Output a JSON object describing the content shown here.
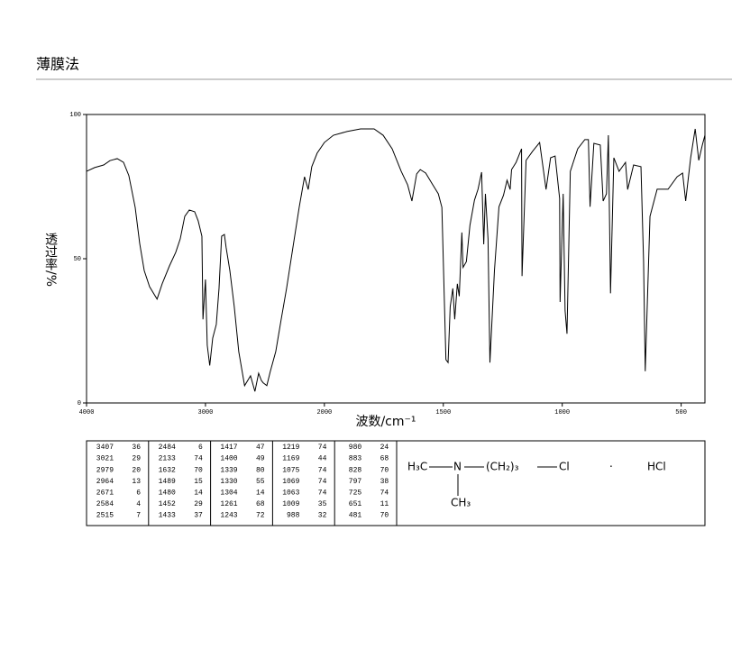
{
  "header": {
    "title": "薄膜法"
  },
  "chart_data": {
    "type": "line",
    "color": "#000000",
    "xlabel": "波数/cm⁻¹",
    "ylabel": "透过率/%",
    "xlim": [
      4000,
      400
    ],
    "xticks": [
      4000,
      3000,
      2000,
      1500,
      1000,
      500
    ],
    "ylim": [
      0,
      100
    ],
    "yticks": [
      0,
      50,
      100
    ],
    "x": [
      4000,
      3932,
      3856,
      3803,
      3742,
      3689,
      3644,
      3591,
      3553,
      3515,
      3470,
      3407,
      3364,
      3303,
      3250,
      3212,
      3174,
      3136,
      3091,
      3061,
      3030,
      3021,
      3000,
      2985,
      2964,
      2939,
      2909,
      2886,
      2864,
      2841,
      2826,
      2795,
      2758,
      2720,
      2671,
      2621,
      2584,
      2553,
      2530,
      2515,
      2484,
      2455,
      2409,
      2364,
      2318,
      2265,
      2212,
      2167,
      2136,
      2106,
      2061,
      2000,
      1962,
      1905,
      1848,
      1791,
      1753,
      1715,
      1677,
      1650,
      1632,
      1612,
      1597,
      1574,
      1544,
      1521,
      1506,
      1489,
      1480,
      1471,
      1460,
      1452,
      1441,
      1433,
      1422,
      1417,
      1403,
      1388,
      1369,
      1354,
      1339,
      1330,
      1323,
      1312,
      1304,
      1285,
      1266,
      1247,
      1232,
      1219,
      1213,
      1194,
      1171,
      1169,
      1152,
      1125,
      1095,
      1068,
      1049,
      1030,
      1011,
      1009,
      996,
      988,
      980,
      966,
      935,
      905,
      890,
      883,
      867,
      840,
      828,
      814,
      806,
      797,
      783,
      761,
      734,
      725,
      700,
      669,
      658,
      651,
      631,
      601,
      555,
      517,
      494,
      481,
      460,
      441,
      426,
      411,
      400
    ],
    "values": [
      80.3,
      81.6,
      82.5,
      84,
      84.7,
      83.4,
      78.8,
      67.8,
      55.3,
      45.9,
      40.3,
      36,
      41.3,
      47.5,
      52.2,
      56.9,
      64.7,
      66.9,
      66.3,
      63.1,
      57.8,
      29,
      42.8,
      20,
      13,
      22.5,
      27.2,
      39.7,
      57.8,
      58.4,
      53.8,
      45.9,
      33.4,
      17.8,
      6,
      9.4,
      4,
      10.3,
      7.8,
      7,
      6,
      10.9,
      17.8,
      28.8,
      39.7,
      53.8,
      67.8,
      78.4,
      74,
      81.9,
      86.6,
      90.3,
      92.8,
      94.1,
      95,
      95,
      92.8,
      88.1,
      80.3,
      75.6,
      70,
      79.4,
      80.9,
      79.7,
      75.6,
      72.5,
      67.8,
      15,
      14,
      33.4,
      39.7,
      29,
      41.3,
      37,
      59.1,
      47,
      49,
      61.6,
      70.3,
      74.1,
      80,
      55,
      72.5,
      56.9,
      14,
      45.9,
      68,
      72,
      77.2,
      74,
      80.9,
      83.4,
      88.1,
      44,
      84.1,
      87.2,
      90.3,
      74,
      85,
      85.6,
      70.9,
      35,
      72.5,
      32,
      24,
      80.3,
      88.1,
      91.3,
      91.3,
      68,
      90,
      89.4,
      70,
      72.5,
      92.8,
      38,
      85,
      80.3,
      83.4,
      74,
      82.5,
      81.9,
      49.1,
      11,
      64.7,
      74.1,
      74.1,
      78.4,
      79.7,
      70,
      85,
      95,
      84.1,
      89.4,
      92.8
    ]
  },
  "peak_table": {
    "columns": [
      [
        [
          3407,
          36
        ],
        [
          3021,
          29
        ],
        [
          2979,
          20
        ],
        [
          2964,
          13
        ],
        [
          2671,
          6
        ],
        [
          2584,
          4
        ],
        [
          2515,
          7
        ]
      ],
      [
        [
          2484,
          6
        ],
        [
          2133,
          74
        ],
        [
          1632,
          70
        ],
        [
          1489,
          15
        ],
        [
          1480,
          14
        ],
        [
          1452,
          29
        ],
        [
          1433,
          37
        ]
      ],
      [
        [
          1417,
          47
        ],
        [
          1400,
          49
        ],
        [
          1339,
          80
        ],
        [
          1330,
          55
        ],
        [
          1304,
          14
        ],
        [
          1261,
          68
        ],
        [
          1243,
          72
        ]
      ],
      [
        [
          1219,
          74
        ],
        [
          1169,
          44
        ],
        [
          1075,
          74
        ],
        [
          1069,
          74
        ],
        [
          1063,
          74
        ],
        [
          1009,
          35
        ],
        [
          988,
          32
        ]
      ],
      [
        [
          980,
          24
        ],
        [
          883,
          68
        ],
        [
          828,
          70
        ],
        [
          797,
          38
        ],
        [
          725,
          74
        ],
        [
          651,
          11
        ],
        [
          481,
          70
        ]
      ]
    ]
  },
  "structure": {
    "left": "H₃C",
    "center": "N",
    "chain": "(CH₂)₃",
    "end": "Cl",
    "dot": "·",
    "salt": "HCl",
    "below": "CH₃"
  }
}
